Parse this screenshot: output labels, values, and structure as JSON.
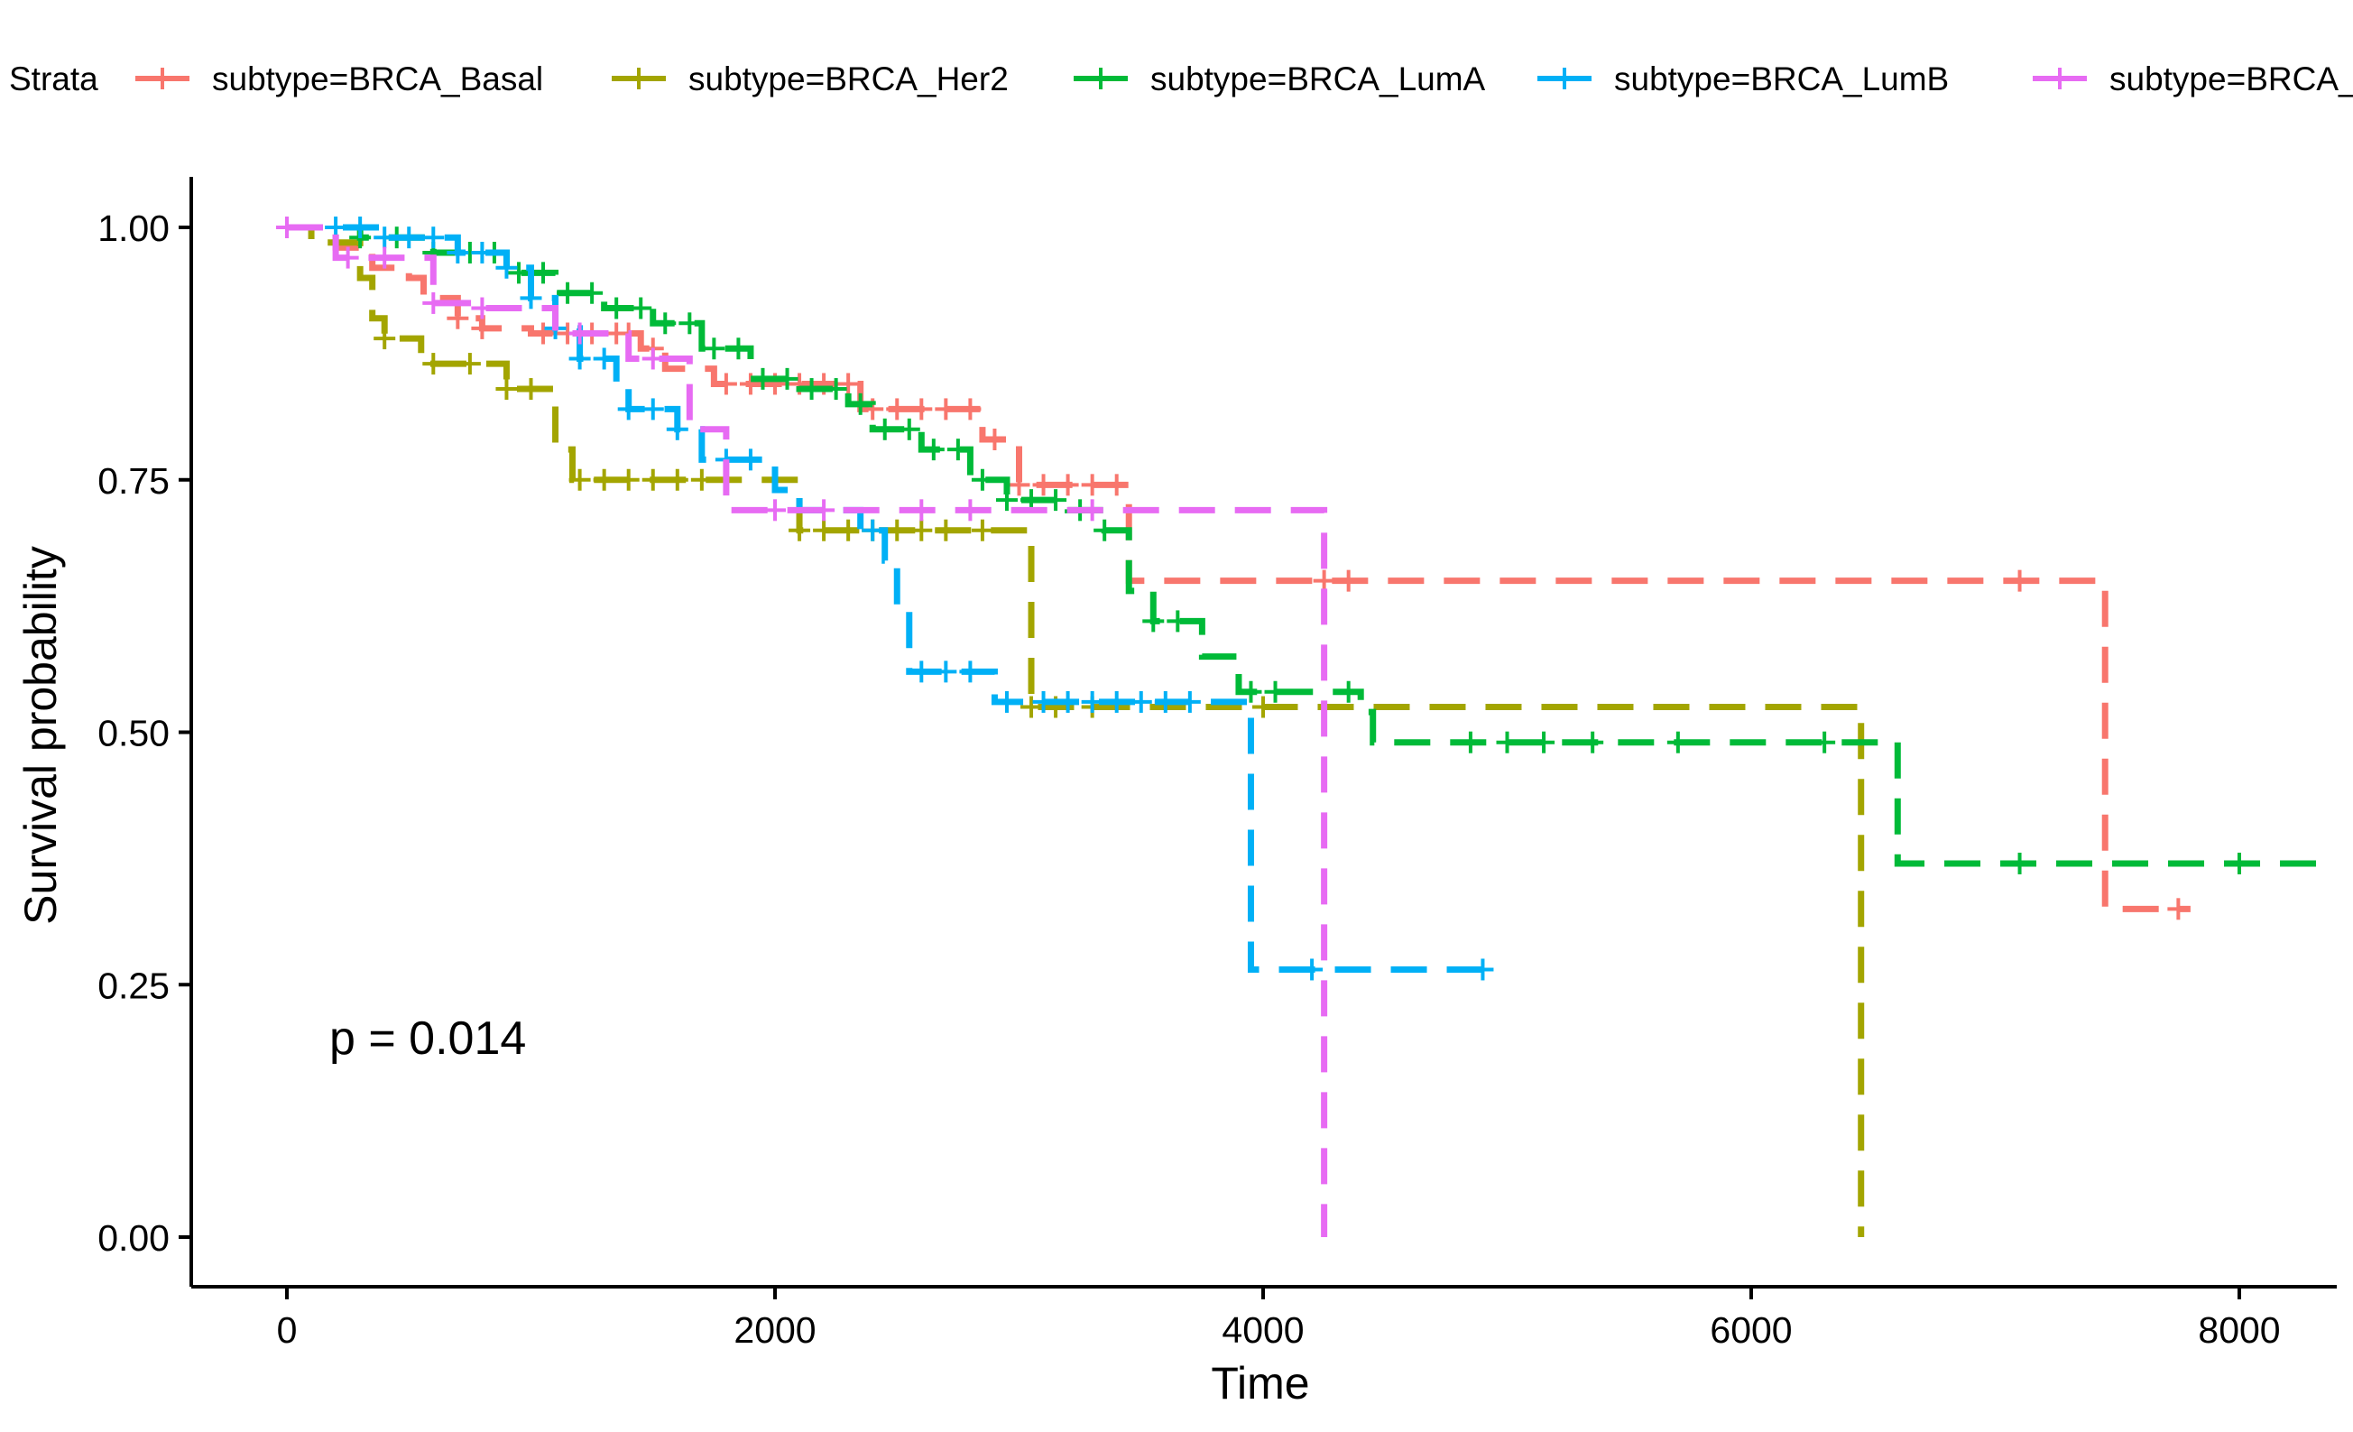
{
  "chart_data": {
    "type": "line",
    "subtype": "kaplan-meier",
    "xlabel": "Time",
    "ylabel": "Survival probability",
    "xlim": [
      -400,
      8350
    ],
    "ylim": [
      -0.05,
      1.05
    ],
    "x_ticks": [
      0,
      2000,
      4000,
      6000,
      8000
    ],
    "x_tick_labels": [
      "0",
      "2000",
      "4000",
      "6000",
      "8000"
    ],
    "y_ticks": [
      0,
      0.25,
      0.5,
      0.75,
      1.0
    ],
    "y_tick_labels": [
      "0.00",
      "0.25",
      "0.50",
      "0.75",
      "1.00"
    ],
    "grid": false,
    "legend": {
      "title": "Strata",
      "placement": "top"
    },
    "annotation": "p = 0.014",
    "series": [
      {
        "name": "subtype=BRCA_Basal",
        "color": "#F8766D",
        "steps": [
          [
            0,
            1.0
          ],
          [
            200,
            0.98
          ],
          [
            350,
            0.96
          ],
          [
            500,
            0.95
          ],
          [
            560,
            0.93
          ],
          [
            700,
            0.91
          ],
          [
            800,
            0.9
          ],
          [
            1000,
            0.895
          ],
          [
            1450,
            0.88
          ],
          [
            1550,
            0.86
          ],
          [
            1750,
            0.845
          ],
          [
            2350,
            0.82
          ],
          [
            2850,
            0.79
          ],
          [
            3000,
            0.745
          ],
          [
            3450,
            0.65
          ],
          [
            7450,
            0.325
          ],
          [
            7800,
            0.325
          ]
        ],
        "censor_x": [
          700,
          800,
          1050,
          1150,
          1250,
          1350,
          1400,
          1500,
          1800,
          1900,
          2000,
          2100,
          2200,
          2300,
          2400,
          2500,
          2600,
          2700,
          2800,
          2900,
          3000,
          3100,
          3200,
          3300,
          3400,
          4250,
          4350,
          7100,
          7750
        ]
      },
      {
        "name": "subtype=BRCA_Her2",
        "color": "#A3A500",
        "steps": [
          [
            0,
            1.0
          ],
          [
            100,
            0.985
          ],
          [
            300,
            0.95
          ],
          [
            350,
            0.91
          ],
          [
            400,
            0.89
          ],
          [
            550,
            0.865
          ],
          [
            900,
            0.84
          ],
          [
            1100,
            0.78
          ],
          [
            1170,
            0.75
          ],
          [
            2100,
            0.7
          ],
          [
            3050,
            0.525
          ],
          [
            6450,
            0.0
          ]
        ],
        "censor_x": [
          400,
          600,
          750,
          900,
          1000,
          1200,
          1300,
          1400,
          1500,
          1600,
          1700,
          1800,
          2000,
          2100,
          2200,
          2300,
          2400,
          2500,
          2600,
          2700,
          2850,
          3050,
          3150,
          3300,
          4000
        ]
      },
      {
        "name": "subtype=BRCA_LumA",
        "color": "#00BA38",
        "steps": [
          [
            0,
            1.0
          ],
          [
            300,
            0.99
          ],
          [
            600,
            0.975
          ],
          [
            900,
            0.955
          ],
          [
            1100,
            0.935
          ],
          [
            1300,
            0.92
          ],
          [
            1500,
            0.905
          ],
          [
            1700,
            0.88
          ],
          [
            1900,
            0.85
          ],
          [
            2100,
            0.84
          ],
          [
            2300,
            0.825
          ],
          [
            2400,
            0.8
          ],
          [
            2600,
            0.78
          ],
          [
            2800,
            0.75
          ],
          [
            2950,
            0.73
          ],
          [
            3200,
            0.72
          ],
          [
            3350,
            0.7
          ],
          [
            3450,
            0.64
          ],
          [
            3550,
            0.61
          ],
          [
            3750,
            0.575
          ],
          [
            3900,
            0.54
          ],
          [
            4400,
            0.52
          ],
          [
            4450,
            0.49
          ],
          [
            6600,
            0.37
          ],
          [
            8350,
            0.37
          ]
        ],
        "censor_x": [
          300,
          450,
          600,
          750,
          850,
          950,
          1050,
          1150,
          1250,
          1350,
          1450,
          1550,
          1650,
          1750,
          1850,
          1950,
          2050,
          2150,
          2250,
          2350,
          2450,
          2550,
          2650,
          2750,
          2850,
          2950,
          3050,
          3150,
          3250,
          3350,
          3550,
          3650,
          3950,
          4050,
          4350,
          4850,
          5000,
          5150,
          5350,
          5700,
          6300,
          7100,
          8000
        ]
      },
      {
        "name": "subtype=BRCA_LumB",
        "color": "#00B0F6",
        "steps": [
          [
            0,
            1.0
          ],
          [
            400,
            0.99
          ],
          [
            700,
            0.975
          ],
          [
            900,
            0.96
          ],
          [
            1000,
            0.93
          ],
          [
            1100,
            0.9
          ],
          [
            1200,
            0.87
          ],
          [
            1350,
            0.84
          ],
          [
            1400,
            0.82
          ],
          [
            1600,
            0.8
          ],
          [
            1700,
            0.77
          ],
          [
            2000,
            0.74
          ],
          [
            2100,
            0.72
          ],
          [
            2350,
            0.7
          ],
          [
            2450,
            0.67
          ],
          [
            2500,
            0.62
          ],
          [
            2550,
            0.56
          ],
          [
            2900,
            0.53
          ],
          [
            3950,
            0.265
          ],
          [
            4900,
            0.265
          ]
        ],
        "censor_x": [
          200,
          300,
          400,
          500,
          600,
          700,
          800,
          900,
          1000,
          1100,
          1200,
          1300,
          1400,
          1500,
          1600,
          1800,
          1900,
          2400,
          2600,
          2700,
          2800,
          2950,
          3100,
          3200,
          3300,
          3400,
          3500,
          3600,
          3700,
          4200,
          4900
        ]
      },
      {
        "name": "subtype=BRCA_Normal",
        "color": "#E76BF3",
        "steps": [
          [
            0,
            1.0
          ],
          [
            200,
            0.97
          ],
          [
            600,
            0.925
          ],
          [
            800,
            0.92
          ],
          [
            1100,
            0.895
          ],
          [
            1400,
            0.87
          ],
          [
            1650,
            0.8
          ],
          [
            1800,
            0.72
          ],
          [
            4250,
            0.0
          ]
        ],
        "censor_x": [
          0,
          250,
          400,
          600,
          800,
          1200,
          1500,
          2000,
          2200,
          2600,
          2800,
          3300
        ]
      }
    ]
  }
}
